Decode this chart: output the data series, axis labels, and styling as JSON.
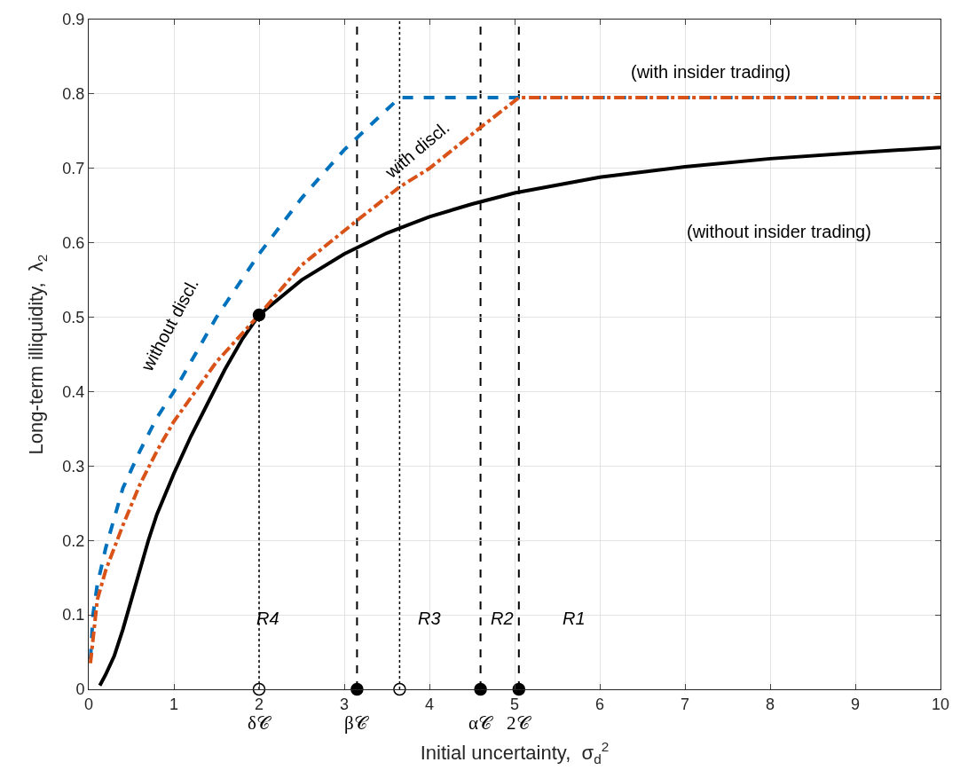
{
  "chart_data": {
    "type": "line",
    "xlabel": "Initial uncertainty,  σ$_{d}$$^{2}$",
    "ylabel": "Long-term illiquidity,  λ$_{2}$",
    "xlim": [
      0,
      10
    ],
    "xticks": [
      0,
      1,
      2,
      3,
      4,
      5,
      6,
      7,
      8,
      9,
      10
    ],
    "ylim": [
      0,
      0.9
    ],
    "yticks": [
      0,
      0.1,
      0.2,
      0.3,
      0.4,
      0.5,
      0.6,
      0.7,
      0.8,
      0.9
    ],
    "grid": true,
    "series": [
      {
        "color": "#000000",
        "line_style": "solid",
        "x": [
          0.13,
          0.2,
          0.3,
          0.4,
          0.5,
          0.6,
          0.7,
          0.8,
          1.0,
          1.2,
          1.4,
          1.6,
          1.8,
          2.0,
          2.5,
          3.0,
          3.5,
          4.0,
          4.5,
          5.0,
          6.0,
          7.0,
          8.0,
          9.0,
          10.0
        ],
        "values": [
          0.005,
          0.02,
          0.045,
          0.08,
          0.12,
          0.16,
          0.2,
          0.235,
          0.29,
          0.34,
          0.385,
          0.43,
          0.47,
          0.503,
          0.55,
          0.585,
          0.613,
          0.635,
          0.652,
          0.667,
          0.688,
          0.702,
          0.713,
          0.721,
          0.728
        ]
      },
      {
        "color": "#0072bd",
        "line_style": "dashed",
        "x": [
          0.02,
          0.05,
          0.1,
          0.2,
          0.4,
          0.6,
          0.8,
          1.0,
          1.5,
          2.0,
          2.5,
          3.0,
          3.65,
          10.0
        ],
        "values": [
          0.04,
          0.1,
          0.14,
          0.19,
          0.27,
          0.32,
          0.365,
          0.4,
          0.5,
          0.585,
          0.66,
          0.725,
          0.795,
          0.795
        ]
      },
      {
        "color": "#d95319",
        "line_style": "dashdot",
        "x": [
          0.02,
          0.1,
          0.2,
          0.4,
          0.6,
          0.8,
          1.0,
          1.5,
          2.0,
          2.5,
          3.15,
          3.65,
          4.0,
          4.6,
          5.05,
          10.0
        ],
        "values": [
          0.035,
          0.12,
          0.16,
          0.22,
          0.275,
          0.32,
          0.36,
          0.44,
          0.503,
          0.57,
          0.63,
          0.675,
          0.7,
          0.755,
          0.795,
          0.795
        ]
      },
      {
        "type": "line",
        "color": "#000000",
        "line_style": "dotted",
        "x": [
          2,
          2
        ],
        "values": [
          0,
          0.503
        ]
      },
      {
        "type": "scatter",
        "color": "#000000",
        "marker": "circle",
        "x": [
          2
        ],
        "values": [
          0.503
        ]
      },
      {
        "type": "scatter",
        "color": "#000000",
        "marker": "circle-open",
        "x": [
          2,
          3.65
        ],
        "values": [
          0,
          0
        ]
      },
      {
        "type": "scatter",
        "color": "#000000",
        "marker": "circle",
        "x": [
          3.15,
          4.6,
          5.05
        ],
        "values": [
          0,
          0,
          0
        ]
      }
    ],
    "ref_lines": [
      {
        "axis": "x",
        "value": 3.15,
        "label": "β𝒞",
        "line_style": "dashed",
        "color": "#000000"
      },
      {
        "axis": "x",
        "value": 3.65,
        "label": null,
        "line_style": "dotted",
        "color": "#000000"
      },
      {
        "axis": "x",
        "value": 4.6,
        "label": "α𝒞",
        "line_style": "dashed",
        "color": "#000000"
      },
      {
        "axis": "x",
        "value": 5.05,
        "label": null,
        "line_style": "dashed",
        "color": "#000000"
      }
    ],
    "annotations": [
      {
        "text": "δ𝒞",
        "x": 2,
        "y": 0
      },
      "(with insider trading)",
      "(without insider trading)",
      "without discl.",
      "with discl.",
      "R4",
      "R3",
      "R2",
      "R1",
      "2𝒞"
    ]
  }
}
